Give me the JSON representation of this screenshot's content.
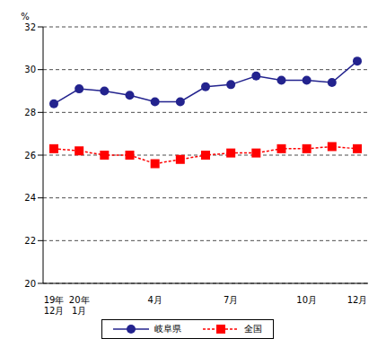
{
  "chart_data": {
    "type": "line",
    "y_label": "%",
    "categories": [
      "19年\n12月",
      "20年\n1月",
      null,
      null,
      "4月",
      null,
      null,
      "7月",
      null,
      null,
      "10月",
      null,
      "12月"
    ],
    "series": [
      {
        "name": "岐阜県",
        "color": "#23238e",
        "marker": "circle",
        "line_style": "solid",
        "values": [
          28.4,
          29.1,
          29.0,
          28.8,
          28.5,
          28.5,
          29.2,
          29.3,
          29.7,
          29.5,
          29.5,
          29.4,
          30.4
        ]
      },
      {
        "name": "全国",
        "color": "#ff0000",
        "marker": "square",
        "line_style": "dashed",
        "values": [
          26.3,
          26.2,
          26.0,
          26.0,
          25.6,
          25.8,
          26.0,
          26.1,
          26.1,
          26.3,
          26.3,
          26.4,
          26.3
        ]
      }
    ],
    "ylim": [
      20,
      32
    ],
    "yticks": [
      20,
      22,
      24,
      26,
      28,
      30,
      32
    ],
    "grid": true,
    "legend": "bottom"
  }
}
